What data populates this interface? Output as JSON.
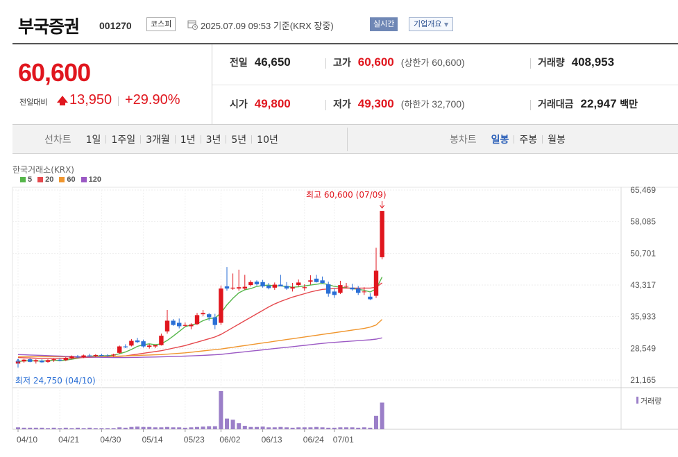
{
  "header": {
    "company_name": "부국증권",
    "code": "001270",
    "market": "코스피",
    "datetime": "2025.07.09 09:53 기준(KRX 장중)",
    "realtime_label": "실시간",
    "overview_label": "기업개요"
  },
  "quote": {
    "current": "60,600",
    "change_label": "전일대비",
    "change_value": "13,950",
    "change_pct": "+29.90%",
    "direction": "up",
    "stats": {
      "prev_close": {
        "label": "전일",
        "value": "46,650"
      },
      "open": {
        "label": "시가",
        "value": "49,800"
      },
      "high": {
        "label": "고가",
        "value": "60,600",
        "note_label": "상한가",
        "note_value": "60,600"
      },
      "low": {
        "label": "저가",
        "value": "49,300",
        "note_label": "하한가",
        "note_value": "32,700"
      },
      "volume": {
        "label": "거래량",
        "value": "408,953"
      },
      "turnover": {
        "label": "거래대금",
        "value": "22,947",
        "unit": "백만"
      }
    },
    "colors": {
      "up": "#e0161e",
      "down": "#2a6fd6"
    }
  },
  "line_tabs": {
    "title": "선차트",
    "items": [
      "1일",
      "1주일",
      "3개월",
      "1년",
      "3년",
      "5년",
      "10년"
    ]
  },
  "candle_tabs": {
    "title": "봉차트",
    "items": [
      {
        "label": "일봉",
        "active": true
      },
      {
        "label": "주봉",
        "active": false
      },
      {
        "label": "월봉",
        "active": false
      }
    ]
  },
  "chart_data": {
    "type": "candlestick",
    "source": "한국거래소(KRX)",
    "legend": [
      {
        "name": "5",
        "color": "#56b64a"
      },
      {
        "name": "20",
        "color": "#e5484d"
      },
      {
        "name": "60",
        "color": "#f0962e"
      },
      {
        "name": "120",
        "color": "#9b59c4"
      }
    ],
    "y_ticks": [
      "65,469",
      "58,085",
      "50,701",
      "43,317",
      "35,933",
      "28,549",
      "21,165"
    ],
    "ylim": [
      21165,
      65469
    ],
    "x_labels": [
      {
        "label": "04/10",
        "i": 0
      },
      {
        "label": "04/21",
        "i": 7
      },
      {
        "label": "04/30",
        "i": 14
      },
      {
        "label": "05/14",
        "i": 21
      },
      {
        "label": "05/23",
        "i": 28
      },
      {
        "label": "06/02",
        "i": 34
      },
      {
        "label": "06/13",
        "i": 41
      },
      {
        "label": "06/24",
        "i": 48
      },
      {
        "label": "07/01",
        "i": 53
      }
    ],
    "high_annotation": "최고 60,600 (07/09)",
    "low_annotation": "최저 24,750 (04/10)",
    "volume_label": "거래량",
    "candles": [
      {
        "o": 25000,
        "h": 25800,
        "l": 24750,
        "c": 25500
      },
      {
        "o": 25500,
        "h": 26100,
        "l": 25200,
        "c": 25900
      },
      {
        "o": 26000,
        "h": 26300,
        "l": 25300,
        "c": 25400
      },
      {
        "o": 25500,
        "h": 26000,
        "l": 25000,
        "c": 25800
      },
      {
        "o": 25700,
        "h": 26000,
        "l": 25200,
        "c": 25300
      },
      {
        "o": 25400,
        "h": 26000,
        "l": 25200,
        "c": 25800
      },
      {
        "o": 25800,
        "h": 26200,
        "l": 25400,
        "c": 26000
      },
      {
        "o": 25900,
        "h": 26300,
        "l": 25500,
        "c": 25700
      },
      {
        "o": 25800,
        "h": 26500,
        "l": 25600,
        "c": 26300
      },
      {
        "o": 26200,
        "h": 26900,
        "l": 26000,
        "c": 26700
      },
      {
        "o": 26600,
        "h": 27000,
        "l": 26300,
        "c": 26500
      },
      {
        "o": 26500,
        "h": 27100,
        "l": 26300,
        "c": 26900
      },
      {
        "o": 26900,
        "h": 27300,
        "l": 26600,
        "c": 26800
      },
      {
        "o": 26800,
        "h": 27200,
        "l": 26500,
        "c": 27000
      },
      {
        "o": 27000,
        "h": 27300,
        "l": 26700,
        "c": 26800
      },
      {
        "o": 26900,
        "h": 27200,
        "l": 26600,
        "c": 26800
      },
      {
        "o": 26900,
        "h": 27300,
        "l": 26600,
        "c": 27100
      },
      {
        "o": 27500,
        "h": 29200,
        "l": 27300,
        "c": 29000
      },
      {
        "o": 29000,
        "h": 29500,
        "l": 28600,
        "c": 28800
      },
      {
        "o": 29200,
        "h": 30700,
        "l": 29000,
        "c": 30300
      },
      {
        "o": 30400,
        "h": 31000,
        "l": 29800,
        "c": 30000
      },
      {
        "o": 30200,
        "h": 30600,
        "l": 28700,
        "c": 29000
      },
      {
        "o": 28900,
        "h": 29500,
        "l": 28500,
        "c": 29200
      },
      {
        "o": 29000,
        "h": 29400,
        "l": 28600,
        "c": 29300
      },
      {
        "o": 29300,
        "h": 32000,
        "l": 29200,
        "c": 31500
      },
      {
        "o": 32500,
        "h": 37500,
        "l": 32000,
        "c": 35000
      },
      {
        "o": 35000,
        "h": 35400,
        "l": 33800,
        "c": 34000
      },
      {
        "o": 34500,
        "h": 35500,
        "l": 33200,
        "c": 33700
      },
      {
        "o": 33800,
        "h": 34600,
        "l": 33500,
        "c": 34000
      },
      {
        "o": 33700,
        "h": 34400,
        "l": 33000,
        "c": 34100
      },
      {
        "o": 34200,
        "h": 36800,
        "l": 34000,
        "c": 36300
      },
      {
        "o": 36500,
        "h": 37500,
        "l": 36000,
        "c": 36800
      },
      {
        "o": 36500,
        "h": 36800,
        "l": 35000,
        "c": 35800
      },
      {
        "o": 35800,
        "h": 36600,
        "l": 33000,
        "c": 34000
      },
      {
        "o": 34500,
        "h": 43200,
        "l": 34000,
        "c": 42500
      },
      {
        "o": 43000,
        "h": 47500,
        "l": 42000,
        "c": 42500
      },
      {
        "o": 42500,
        "h": 46000,
        "l": 42200,
        "c": 42700
      },
      {
        "o": 42500,
        "h": 46900,
        "l": 42000,
        "c": 42800
      },
      {
        "o": 42500,
        "h": 45700,
        "l": 42200,
        "c": 42900
      },
      {
        "o": 43300,
        "h": 44400,
        "l": 43000,
        "c": 44000
      },
      {
        "o": 44100,
        "h": 44400,
        "l": 43200,
        "c": 43500
      },
      {
        "o": 44000,
        "h": 44500,
        "l": 42700,
        "c": 43000
      },
      {
        "o": 43200,
        "h": 43800,
        "l": 42300,
        "c": 42600
      },
      {
        "o": 42700,
        "h": 43900,
        "l": 42200,
        "c": 43400
      },
      {
        "o": 43400,
        "h": 45700,
        "l": 43000,
        "c": 43000
      },
      {
        "o": 43100,
        "h": 44000,
        "l": 42200,
        "c": 42500
      },
      {
        "o": 42500,
        "h": 43800,
        "l": 41800,
        "c": 42800
      },
      {
        "o": 43300,
        "h": 44600,
        "l": 43000,
        "c": 43900
      },
      {
        "o": 42600,
        "h": 43500,
        "l": 42000,
        "c": 42800
      },
      {
        "o": 44100,
        "h": 45600,
        "l": 43400,
        "c": 44400
      },
      {
        "o": 44800,
        "h": 45700,
        "l": 43900,
        "c": 44000
      },
      {
        "o": 44400,
        "h": 45300,
        "l": 43600,
        "c": 43800
      },
      {
        "o": 43500,
        "h": 44100,
        "l": 40600,
        "c": 41300
      },
      {
        "o": 41800,
        "h": 42500,
        "l": 40300,
        "c": 41000
      },
      {
        "o": 41500,
        "h": 44300,
        "l": 41200,
        "c": 43300
      },
      {
        "o": 43000,
        "h": 43800,
        "l": 42600,
        "c": 43100
      },
      {
        "o": 42700,
        "h": 43600,
        "l": 42000,
        "c": 42300
      },
      {
        "o": 42500,
        "h": 43100,
        "l": 41000,
        "c": 41500
      },
      {
        "o": 41700,
        "h": 42800,
        "l": 41000,
        "c": 41800
      },
      {
        "o": 40600,
        "h": 41400,
        "l": 39800,
        "c": 40000
      },
      {
        "o": 40800,
        "h": 52000,
        "l": 40300,
        "c": 46650
      },
      {
        "o": 49800,
        "h": 60600,
        "l": 49300,
        "c": 60600
      }
    ],
    "volumes": [
      5,
      4,
      4,
      4,
      4,
      3,
      4,
      3,
      4,
      3,
      4,
      3,
      4,
      3,
      3,
      3,
      3,
      5,
      4,
      6,
      7,
      6,
      6,
      5,
      5,
      6,
      5,
      5,
      4,
      5,
      6,
      7,
      8,
      8,
      100,
      28,
      25,
      16,
      9,
      6,
      6,
      7,
      5,
      5,
      6,
      5,
      4,
      5,
      5,
      5,
      6,
      5,
      4,
      4,
      5,
      5,
      5,
      4,
      5,
      4,
      35,
      70
    ],
    "moving_averages": {
      "ma5": [
        25500,
        25600,
        25700,
        25600,
        25600,
        25650,
        25800,
        25700,
        25800,
        26000,
        26250,
        26500,
        26700,
        26800,
        26800,
        26850,
        26950,
        27300,
        27700,
        28300,
        29000,
        29400,
        29600,
        29400,
        29600,
        30400,
        31400,
        32500,
        33600,
        34000,
        34300,
        35000,
        35500,
        35600,
        36800,
        38700,
        40200,
        41500,
        42200,
        42500,
        43000,
        43200,
        43300,
        43100,
        43100,
        43000,
        42800,
        42900,
        43100,
        43300,
        43500,
        43700,
        43400,
        43000,
        42800,
        42700,
        42500,
        42300,
        42100,
        41700,
        42400,
        45200
      ],
      "ma20": [
        26400,
        26350,
        26300,
        26250,
        26200,
        26200,
        26200,
        26200,
        26220,
        26300,
        26350,
        26400,
        26450,
        26500,
        26550,
        26600,
        26650,
        26700,
        26800,
        27000,
        27200,
        27400,
        27600,
        27800,
        28000,
        28300,
        28600,
        28900,
        29200,
        29600,
        30000,
        30400,
        30800,
        31200,
        31800,
        32600,
        33400,
        34200,
        35000,
        35800,
        36600,
        37400,
        38200,
        38900,
        39500,
        40000,
        40500,
        40900,
        41300,
        41700,
        42000,
        42300,
        42400,
        42500,
        42600,
        42600,
        42600,
        42600,
        42600,
        42600,
        42800,
        43800
      ],
      "ma60": [
        26600,
        26600,
        26600,
        26600,
        26600,
        26600,
        26600,
        26600,
        26600,
        26600,
        26600,
        26600,
        26600,
        26600,
        26600,
        26650,
        26700,
        26750,
        26800,
        26850,
        26900,
        26950,
        27000,
        27050,
        27100,
        27200,
        27300,
        27400,
        27500,
        27650,
        27800,
        27950,
        28100,
        28250,
        28400,
        28600,
        28800,
        29000,
        29200,
        29400,
        29600,
        29800,
        30000,
        30200,
        30400,
        30600,
        30800,
        31000,
        31200,
        31400,
        31600,
        31800,
        32000,
        32200,
        32400,
        32600,
        32800,
        33000,
        33200,
        33500,
        34000,
        35300
      ],
      "ma120": [
        27100,
        27050,
        27000,
        26950,
        26900,
        26850,
        26800,
        26750,
        26700,
        26650,
        26600,
        26560,
        26520,
        26480,
        26450,
        26430,
        26410,
        26400,
        26410,
        26430,
        26450,
        26480,
        26510,
        26540,
        26570,
        26610,
        26650,
        26700,
        26750,
        26800,
        26860,
        26920,
        26980,
        27050,
        27150,
        27300,
        27450,
        27600,
        27750,
        27900,
        28050,
        28200,
        28350,
        28500,
        28650,
        28800,
        28950,
        29100,
        29250,
        29400,
        29550,
        29700,
        29850,
        29950,
        30050,
        30150,
        30250,
        30350,
        30450,
        30550,
        30700,
        31000
      ]
    }
  }
}
